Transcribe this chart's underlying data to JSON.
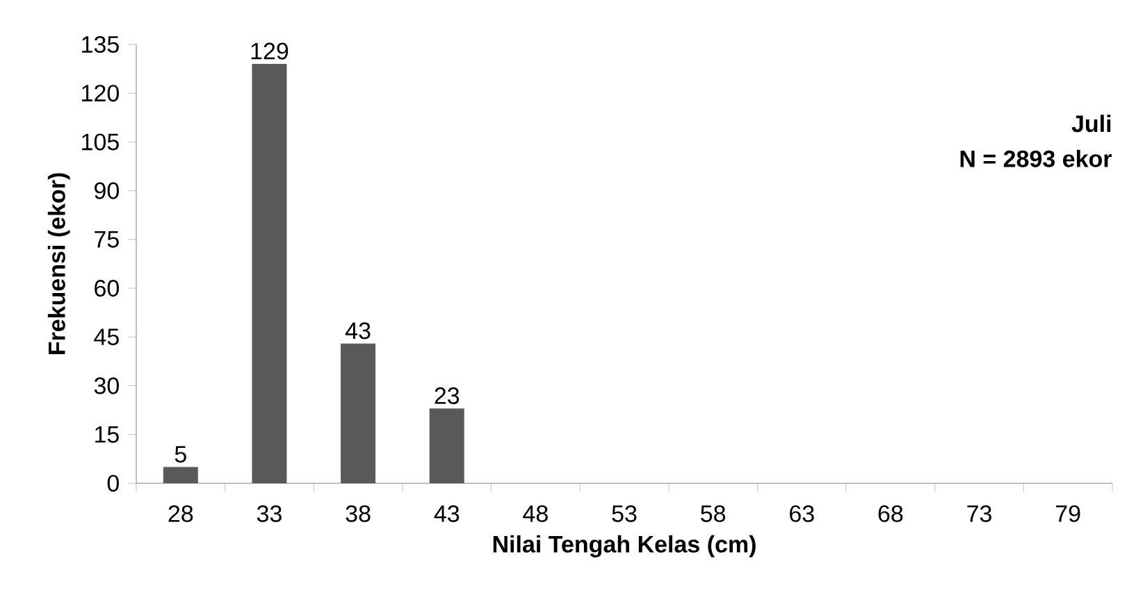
{
  "chart_data": {
    "type": "bar",
    "xlabel": "Nilai Tengah Kelas (cm)",
    "ylabel": "Frekuensi (ekor)",
    "categories": [
      "28",
      "33",
      "38",
      "43",
      "48",
      "53",
      "58",
      "63",
      "68",
      "73",
      "79"
    ],
    "values": [
      5,
      129,
      43,
      23,
      0,
      0,
      0,
      0,
      0,
      0,
      0
    ],
    "value_labels": [
      "5",
      "129",
      "43",
      "23",
      null,
      null,
      null,
      null,
      null,
      null,
      null
    ],
    "color": "#595959",
    "ylim": [
      0,
      135
    ],
    "yticks": [
      0,
      15,
      30,
      45,
      60,
      75,
      90,
      105,
      120,
      135
    ],
    "annotations": [
      "**Juli**",
      "**N = 2893 ekor**"
    ]
  }
}
